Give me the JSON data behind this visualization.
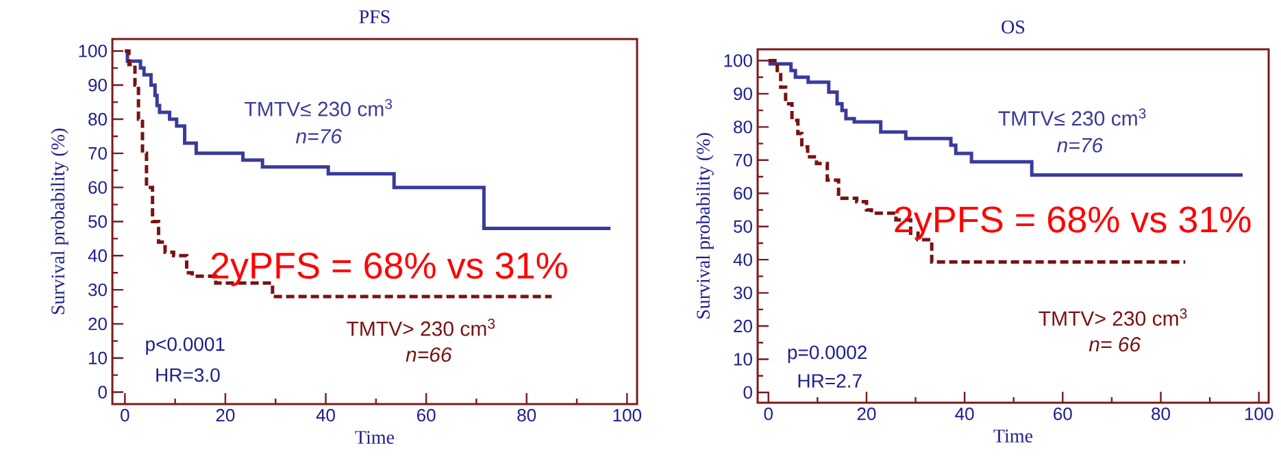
{
  "chart_data": [
    {
      "type": "step",
      "title": "PFS",
      "xlabel": "Time",
      "ylabel": "Survival probability (%)",
      "xlim": [
        -2.5,
        102
      ],
      "ylim": [
        -3.5,
        103.5
      ],
      "xticks": [
        0,
        20,
        40,
        60,
        80,
        100
      ],
      "yticks": [
        0,
        10,
        20,
        30,
        40,
        50,
        60,
        70,
        80,
        90,
        100
      ],
      "series": [
        {
          "name": "TMTV≤ 230 cm$^{3}$",
          "color": "#3a3a9c",
          "line_style": "solid",
          "x": [
            0,
            0.5,
            3.1,
            3.8,
            5.2,
            6,
            6.4,
            6.9,
            8.9,
            10.3,
            11.9,
            14.2,
            23.5,
            27.4,
            40.5,
            53.6,
            71.5,
            96.7
          ],
          "values": [
            100,
            97,
            95,
            93,
            90,
            87,
            84,
            82,
            80,
            78,
            73,
            70,
            68,
            66,
            64,
            60,
            48,
            48
          ]
        },
        {
          "name": "TMTV> 230 cm$^{3}$",
          "color": "#7a1212",
          "line_style": "dashed",
          "x": [
            0,
            0.8,
            2,
            2.7,
            3.5,
            4.3,
            5.5,
            6.7,
            8,
            9.7,
            12.3,
            13.4,
            18.1,
            29.4,
            85
          ],
          "values": [
            100,
            96,
            90,
            80,
            70,
            60,
            50,
            44,
            41,
            40,
            35,
            34,
            32,
            28,
            28
          ]
        }
      ],
      "annotations": [
        "n=76",
        "n=66",
        "p<0.0001",
        "HR=3.0",
        "2yPFS = 68% vs 31%"
      ]
    },
    {
      "type": "step",
      "title": "OS",
      "xlabel": "Time",
      "ylabel": "Survival probability (%)",
      "xlim": [
        -2.2,
        102
      ],
      "ylim": [
        -3.1,
        103.4
      ],
      "xticks": [
        0,
        20,
        40,
        60,
        80,
        100
      ],
      "yticks": [
        0,
        10,
        20,
        30,
        40,
        50,
        60,
        70,
        80,
        90,
        100
      ],
      "series": [
        {
          "name": "TMTV≤ 230 cm$^{3}$",
          "color": "#3a3a9c",
          "line_style": "solid",
          "x": [
            0,
            4.6,
            5.5,
            8.1,
            12.3,
            14,
            15,
            15.8,
            17.5,
            22.9,
            28,
            37.2,
            38.2,
            41.4,
            53.7,
            96.7
          ],
          "values": [
            99,
            97,
            95,
            93.5,
            90.5,
            87,
            85,
            82.5,
            81.5,
            78.5,
            76.5,
            74.5,
            72,
            69.5,
            65.5,
            65.5
          ]
        },
        {
          "name": "TMTV> 230 cm$^{3}$",
          "color": "#7a1212",
          "line_style": "dashed",
          "x": [
            0,
            1.8,
            2.5,
            3.5,
            4.8,
            6,
            6.8,
            8,
            9.8,
            12,
            14.3,
            18,
            20,
            21,
            26,
            29,
            30.5,
            33.3,
            85
          ],
          "values": [
            100,
            97,
            92,
            87,
            82,
            78,
            74,
            71,
            69,
            64,
            58.5,
            57.5,
            55,
            54,
            52,
            48,
            46,
            39.3,
            39.3
          ]
        }
      ],
      "annotations": [
        "n=76",
        "n= 66",
        "p=0.0002",
        "HR=2.7",
        "2yPFS = 68% vs 31%"
      ]
    }
  ]
}
